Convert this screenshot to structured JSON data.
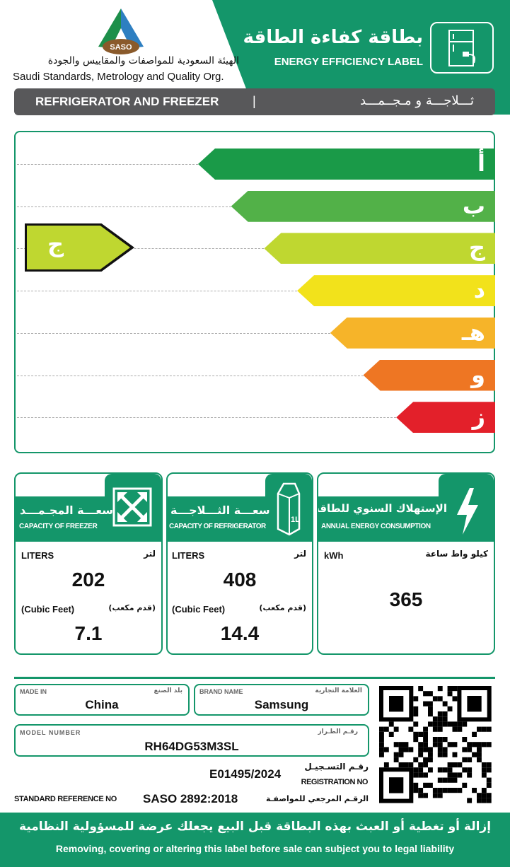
{
  "header": {
    "org_ar": "الهيئة السعودية للمواصفات والمقاييس والجودة",
    "org_en": "Saudi Standards, Metrology and Quality Org.",
    "logo_text": "SASO",
    "title_ar": "بطاقة كفاءة الطاقة",
    "title_en": "ENERGY EFFICIENCY LABEL",
    "icon": "refrigerator-plug-icon"
  },
  "category": {
    "en": "REFRIGERATOR AND FREEZER",
    "sep": "|",
    "ar": "ثـــلاجـــة و مـجــمـــد"
  },
  "scale": {
    "classes": [
      {
        "label": "أ",
        "color": "#1a9a48"
      },
      {
        "label": "ب",
        "color": "#52b148"
      },
      {
        "label": "ج",
        "color": "#bfd730"
      },
      {
        "label": "د",
        "color": "#f2e21b"
      },
      {
        "label": "هـ",
        "color": "#f6b429"
      },
      {
        "label": "و",
        "color": "#ee7623"
      },
      {
        "label": "ز",
        "color": "#e3202a"
      }
    ],
    "rating": "ج"
  },
  "panels": {
    "freezer": {
      "title_ar": "سعـــة المجـمـــد",
      "title_en": "CAPACITY OF FREEZER",
      "unit_en": "LITERS",
      "unit_ar": "لتر",
      "liters": "202",
      "cf_en": "(Cubic Feet)",
      "cf_ar": "(قدم مكعب)",
      "cubic_feet": "7.1",
      "icon": "expand-arrows-icon"
    },
    "refrigerator": {
      "title_ar": "سعـــة الثـــلاجـــة",
      "title_en": "CAPACITY OF REFRIGERATOR",
      "unit_en": "LITERS",
      "unit_ar": "لتر",
      "liters": "408",
      "cf_en": "(Cubic Feet)",
      "cf_ar": "(قدم مكعب)",
      "cubic_feet": "14.4",
      "icon": "milk-carton-icon",
      "icon_text": "1L"
    },
    "energy": {
      "title_ar": "الإستهلاك السنوي للطاقة",
      "title_en": "ANNUAL ENERGY CONSUMPTION",
      "unit_en": "kWh",
      "unit_ar": "كيلو واط ساعة",
      "value": "365",
      "icon": "lightning-icon"
    }
  },
  "info": {
    "made_in_en": "MADE IN",
    "made_in_ar": "بلد الصنع",
    "made_in": "China",
    "brand_en": "BRAND  NAME",
    "brand_ar": "العلامة التجارية",
    "brand": "Samsung",
    "model_en": "MODEL NUMBER",
    "model_ar": "رقـم الطـراز",
    "model": "RH64DG53M3SL",
    "reg_ar": "رقـم التسـجيـل",
    "reg_en": "REGISTRATION NO",
    "reg": "E01495/2024",
    "std_en": "STANDARD REFERENCE NO",
    "std": "SASO 2892:2018",
    "std_ar": "الرقـم المرجعي للمواصفـة"
  },
  "footer": {
    "warning_ar": "إزالة أو تغطية أو العبث بهذه البطاقة قبل البيع يجعلك عرضة للمسؤولية النظامية",
    "warning_en": "Removing, covering or altering this label before sale can subject you to legal liability"
  }
}
